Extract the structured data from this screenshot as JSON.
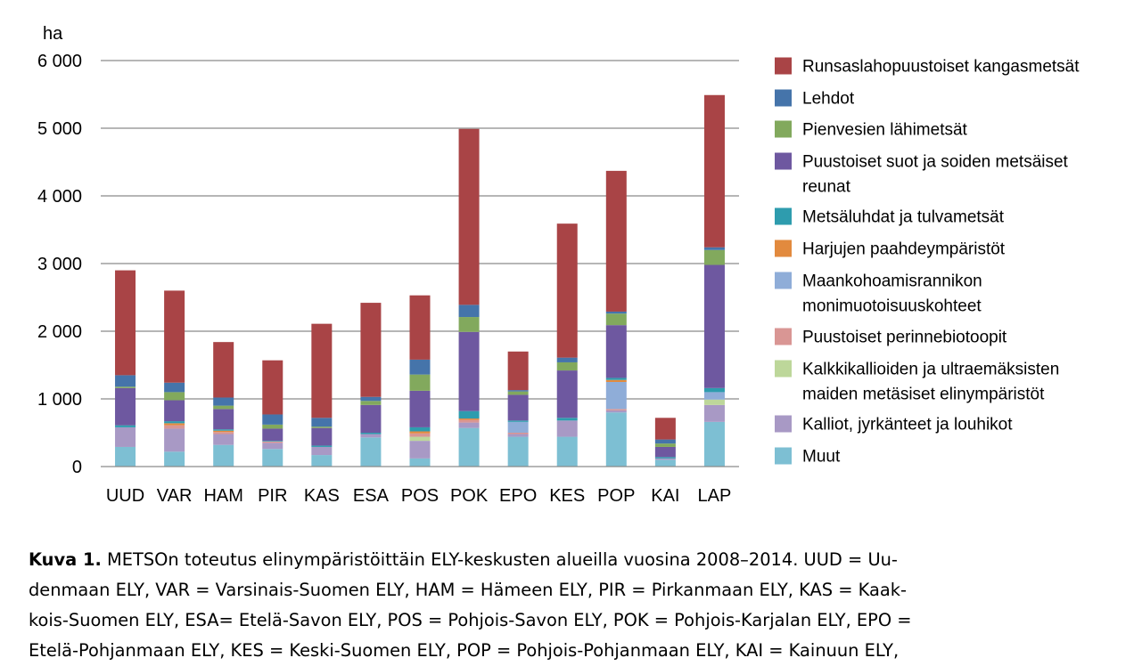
{
  "chart_data": {
    "type": "bar",
    "stacked": true,
    "ylabel": "ha",
    "ylim": [
      0,
      6000
    ],
    "yticks": [
      0,
      1000,
      2000,
      3000,
      4000,
      5000,
      6000
    ],
    "ytick_labels": [
      "0",
      "1 000",
      "2 000",
      "3 000",
      "4 000",
      "5 000",
      "6 000"
    ],
    "grid": true,
    "legend_position": "right",
    "categories": [
      "UUD",
      "VAR",
      "HAM",
      "PIR",
      "KAS",
      "ESA",
      "POS",
      "POK",
      "EPO",
      "KES",
      "POP",
      "KAI",
      "LAP"
    ],
    "series": [
      {
        "name": "Muut",
        "color": "#7dbfd3",
        "values": [
          290,
          220,
          320,
          260,
          170,
          430,
          120,
          570,
          440,
          440,
          800,
          100,
          660
        ]
      },
      {
        "name": "Kalliot, jyrkänteet ja louhikot",
        "color": "#a899c5",
        "values": [
          290,
          340,
          160,
          90,
          120,
          50,
          260,
          80,
          40,
          240,
          30,
          20,
          250
        ]
      },
      {
        "name": "Kalkkikallioiden ja ultraemäksisten maiden metäsiset elinympäristöt",
        "color": "#bdd79a",
        "values": [
          0,
          0,
          0,
          0,
          0,
          0,
          60,
          0,
          0,
          0,
          0,
          0,
          80
        ]
      },
      {
        "name": "Puustoiset perinnebiotoopit",
        "color": "#d99694",
        "values": [
          0,
          50,
          30,
          20,
          0,
          0,
          50,
          40,
          20,
          0,
          20,
          0,
          0
        ]
      },
      {
        "name": "Maankohoamisrannikon monimuotoisuuskohteet",
        "color": "#8fadd8",
        "values": [
          0,
          0,
          0,
          0,
          0,
          0,
          0,
          0,
          160,
          0,
          400,
          0,
          110
        ]
      },
      {
        "name": "Harjujen paahdeympäristöt",
        "color": "#e28a3e",
        "values": [
          0,
          30,
          20,
          0,
          0,
          0,
          30,
          20,
          0,
          0,
          30,
          0,
          0
        ]
      },
      {
        "name": "Metsäluhdat ja tulvametsät",
        "color": "#2e9cae",
        "values": [
          30,
          30,
          20,
          10,
          20,
          20,
          60,
          110,
          20,
          40,
          30,
          20,
          60
        ]
      },
      {
        "name": "Puustoiset suot ja soiden metsäiset reunat",
        "color": "#6e58a0",
        "values": [
          550,
          310,
          300,
          180,
          260,
          410,
          540,
          1170,
          380,
          700,
          780,
          150,
          1820
        ]
      },
      {
        "name": "Pienvesien lähimetsät",
        "color": "#82a95d",
        "values": [
          20,
          120,
          50,
          60,
          20,
          60,
          240,
          220,
          50,
          120,
          170,
          50,
          220
        ]
      },
      {
        "name": "Lehdot",
        "color": "#4574aa",
        "values": [
          170,
          140,
          120,
          150,
          130,
          60,
          220,
          180,
          20,
          70,
          30,
          60,
          40
        ]
      },
      {
        "name": "Runsaslahopuustoiset kangasmetsät",
        "color": "#a94446",
        "values": [
          1550,
          1360,
          820,
          800,
          1390,
          1390,
          950,
          2600,
          570,
          1980,
          2080,
          320,
          2250
        ]
      }
    ],
    "legend": [
      {
        "label": "Runsaslahopuustoiset kangasmetsät",
        "color": "#a94446"
      },
      {
        "label": "Lehdot",
        "color": "#4574aa"
      },
      {
        "label": "Pienvesien lähimetsät",
        "color": "#82a95d"
      },
      {
        "label": "Puustoiset suot ja soiden metsäiset",
        "label2": "reunat",
        "color": "#6e58a0"
      },
      {
        "label": "Metsäluhdat ja tulvametsät",
        "color": "#2e9cae"
      },
      {
        "label": "Harjujen paahdeympäristöt",
        "color": "#e28a3e"
      },
      {
        "label": "Maankohoamisrannikon",
        "label2": "monimuotoisuuskohteet",
        "color": "#8fadd8"
      },
      {
        "label": "Puustoiset perinnebiotoopit",
        "color": "#d99694"
      },
      {
        "label": "Kalkkikallioiden ja ultraemäksisten",
        "label2": "maiden metäsiset elinympäristöt",
        "color": "#bdd79a"
      },
      {
        "label": "Kalliot, jyrkänteet ja louhikot",
        "color": "#a899c5"
      },
      {
        "label": "Muut",
        "color": "#7dbfd3"
      }
    ]
  },
  "caption": {
    "label": "Kuva 1.",
    "text": "  METSOn toteutus elinympäristöittäin ELY-keskusten alueilla vuosina 2008–2014. UUD = Uu-\ndenmaan ELY, VAR = Varsinais-Suomen ELY, HAM = Hämeen ELY, PIR = Pirkanmaan ELY, KAS = Kaak-\nkois-Suomen ELY, ESA= Etelä-Savon ELY, POS = Pohjois-Savon ELY, POK = Pohjois-Karjalan ELY, EPO =\nEtelä-Pohjanmaan ELY, KES = Keski-Suomen ELY, POP = Pohjois-Pohjanmaan ELY, KAI = Kainuun ELY,"
  }
}
